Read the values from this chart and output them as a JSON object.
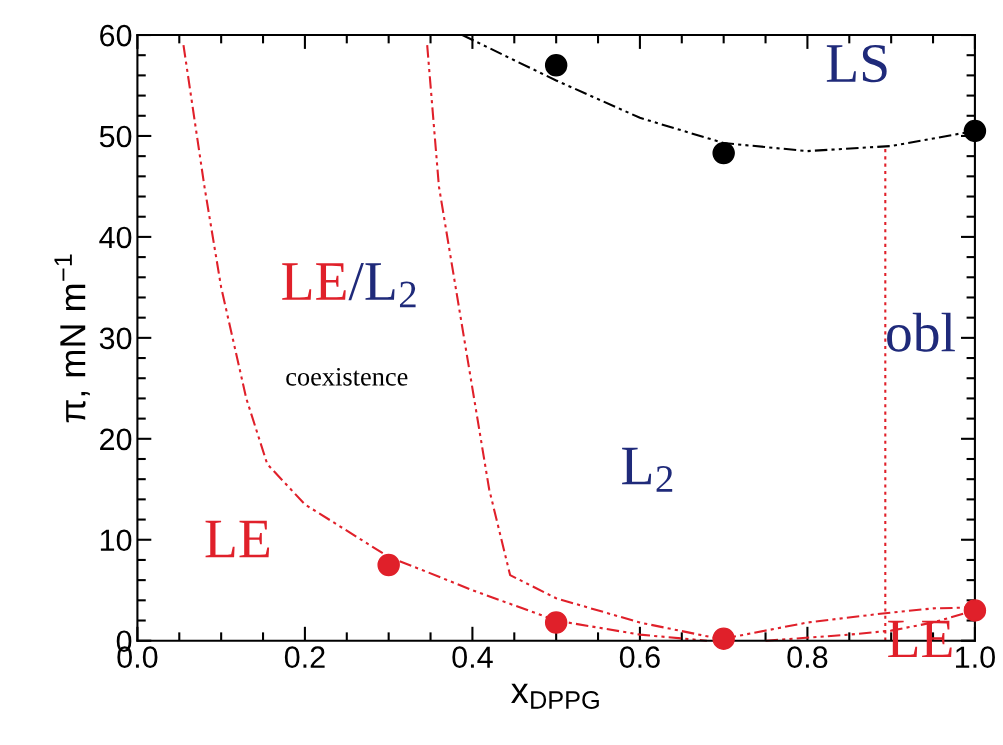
{
  "chart_data": {
    "type": "scatter",
    "xlabel": "x$_{DPPG}$",
    "ylabel": "π, mN m$^{−1}$",
    "xlim": [
      0,
      1
    ],
    "ylim": [
      0,
      60
    ],
    "xticks": [
      {
        "value": 0,
        "label": "0.0"
      },
      0.2,
      0.4,
      0.6,
      0.8,
      {
        "value": 1,
        "label": "1.0"
      }
    ],
    "yticks": [
      0,
      10,
      20,
      30,
      40,
      50,
      60
    ],
    "grid": false,
    "legend": false,
    "series": [
      {
        "type": "line",
        "color": "#000000",
        "line_style": "dashed",
        "x": [
          0.388,
          0.45,
          0.5,
          0.6,
          0.7,
          0.8,
          0.9,
          1.0
        ],
        "values": [
          60,
          57.5,
          55.5,
          51.8,
          49.3,
          48.5,
          49.0,
          50.5
        ]
      },
      {
        "type": "line",
        "color": "#e0202a",
        "line_style": "dashed",
        "x": [
          0.055,
          0.08,
          0.1,
          0.13,
          0.155,
          0.2,
          0.3,
          0.34,
          0.4,
          0.5,
          0.6,
          0.68
        ],
        "values": [
          59,
          45,
          35,
          24,
          17.5,
          13.5,
          8.3,
          7.0,
          5.0,
          2.0,
          0.6,
          0
        ]
      },
      {
        "type": "line",
        "color": "#e0202a",
        "line_style": "dashed",
        "x": [
          0.346,
          0.36,
          0.38,
          0.4,
          0.42,
          0.445,
          0.5,
          0.6,
          0.7
        ],
        "values": [
          59,
          45,
          35,
          25,
          15,
          6.5,
          4.2,
          1.8,
          0.1
        ]
      },
      {
        "type": "line",
        "color": "#e0202a",
        "line_style": "dashed",
        "x": [
          0.7,
          0.8,
          0.89,
          0.95,
          1.0
        ],
        "values": [
          0.2,
          1.8,
          2.7,
          3.2,
          3.3
        ]
      },
      {
        "type": "line",
        "color": "#e0202a",
        "line_style": "dashed",
        "x": [
          0.75,
          0.85,
          0.9,
          0.95,
          1.0
        ],
        "values": [
          0,
          0.6,
          1.0,
          1.8,
          3.0
        ]
      },
      {
        "type": "line",
        "color": "#e0202a",
        "line_style": "dotted",
        "x": [
          0.893,
          0.893
        ],
        "values": [
          0,
          49
        ]
      },
      {
        "color": "#000000",
        "marker": "circle",
        "x": [
          0.5,
          0.7,
          1.0
        ],
        "values": [
          57,
          48.3,
          50.5
        ]
      },
      {
        "color": "#e0202a",
        "marker": "circle",
        "x": [
          0.3,
          0.5,
          0.7,
          1.0
        ],
        "values": [
          7.5,
          1.8,
          0.2,
          3.0
        ]
      }
    ],
    "annotations": [
      "LS",
      "LE",
      "/L$_{2}$",
      "coexistence",
      "L$_{2}$",
      "obl",
      "LE",
      "LE"
    ]
  }
}
